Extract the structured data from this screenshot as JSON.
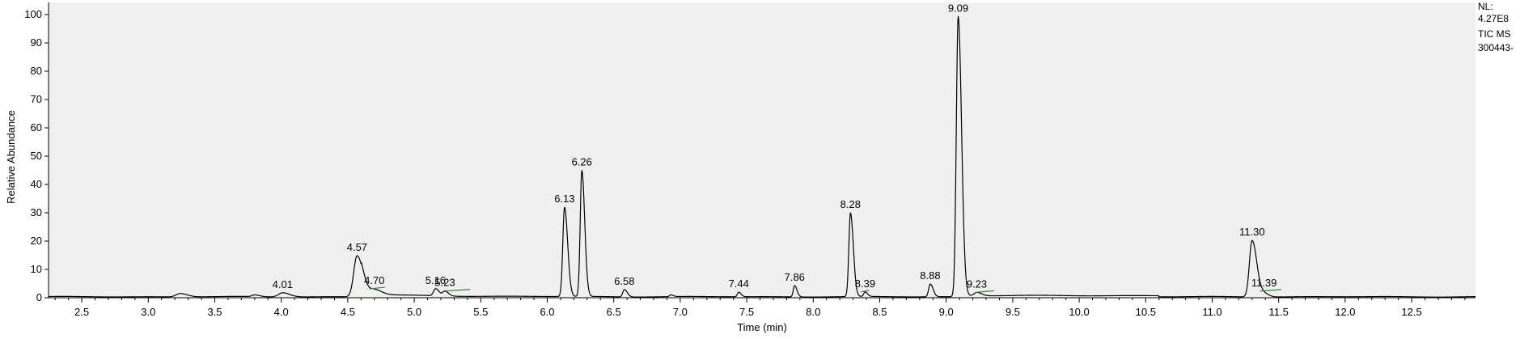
{
  "info": {
    "nl_label": "NL:",
    "nl_value": "4.27E8",
    "scan_filter": "TIC  MS",
    "file_name": "300443-"
  },
  "chart_data": {
    "type": "line",
    "title": "",
    "xlabel": "Time (min)",
    "ylabel": "Relative Abundance",
    "xlim": [
      2.25,
      12.98
    ],
    "ylim": [
      0,
      100
    ],
    "xticks": [
      2.5,
      3.0,
      3.5,
      4.0,
      4.5,
      5.0,
      5.5,
      6.0,
      6.5,
      7.0,
      7.5,
      8.0,
      8.5,
      9.0,
      9.5,
      10.0,
      10.5,
      11.0,
      11.5,
      12.0,
      12.5
    ],
    "xtick_labels": [
      "2.5",
      "3.0",
      "3.5",
      "4.0",
      "4.5",
      "5.0",
      "5.5",
      "6.0",
      "6.5",
      "7.0",
      "7.5",
      "8.0",
      "8.5",
      "9.0",
      "9.5",
      "10.0",
      "10.5",
      "11.0",
      "11.5",
      "12.0",
      "12.5"
    ],
    "yticks": [
      0,
      10,
      20,
      30,
      40,
      50,
      60,
      70,
      80,
      90,
      100
    ],
    "ytick_labels": [
      "0",
      "10",
      "20",
      "30",
      "40",
      "50",
      "60",
      "70",
      "80",
      "90",
      "100"
    ],
    "grid": false,
    "background": "#f0f0f0",
    "line_color": "#000000",
    "annotation_color": "#2e8b2e",
    "peaks": [
      {
        "rt": 3.24,
        "height": 1.2,
        "width": 0.03
      },
      {
        "rt": 3.8,
        "height": 0.6,
        "width": 0.02
      },
      {
        "rt": 4.01,
        "height": 1.5,
        "width": 0.03,
        "label": "4.01"
      },
      {
        "rt": 4.57,
        "height": 14.5,
        "width": 0.025,
        "label": "4.57"
      },
      {
        "rt": 4.7,
        "height": 1.8,
        "width": 0.03,
        "label": "4.70"
      },
      {
        "rt": 5.16,
        "height": 2.5,
        "width": 0.015,
        "label": "5.16"
      },
      {
        "rt": 5.23,
        "height": 1.7,
        "width": 0.015,
        "label": "5.23"
      },
      {
        "rt": 6.13,
        "height": 31.5,
        "width": 0.013,
        "label": "6.13"
      },
      {
        "rt": 6.26,
        "height": 44.5,
        "width": 0.012,
        "label": "6.26"
      },
      {
        "rt": 6.58,
        "height": 2.6,
        "width": 0.012,
        "label": "6.58"
      },
      {
        "rt": 6.93,
        "height": 0.6,
        "width": 0.01
      },
      {
        "rt": 7.44,
        "height": 1.6,
        "width": 0.01,
        "label": "7.44"
      },
      {
        "rt": 7.86,
        "height": 4.0,
        "width": 0.01,
        "label": "7.86"
      },
      {
        "rt": 8.28,
        "height": 29.5,
        "width": 0.012,
        "label": "8.28"
      },
      {
        "rt": 8.39,
        "height": 1.6,
        "width": 0.01,
        "label": "8.39"
      },
      {
        "rt": 8.88,
        "height": 4.5,
        "width": 0.012,
        "label": "8.88"
      },
      {
        "rt": 9.09,
        "height": 99.0,
        "width": 0.014,
        "label": "9.09"
      },
      {
        "rt": 9.23,
        "height": 1.2,
        "width": 0.02,
        "label": "9.23"
      },
      {
        "rt": 11.3,
        "height": 20.0,
        "width": 0.02,
        "label": "11.30"
      },
      {
        "rt": 11.39,
        "height": 1.2,
        "width": 0.02,
        "label": "11.39"
      }
    ],
    "label_marks": [
      {
        "rt": 4.7,
        "x_start": 4.66,
        "x_end": 4.78
      },
      {
        "rt": 5.23,
        "x_start": 5.24,
        "x_end": 5.42
      },
      {
        "rt": 8.39,
        "x_start": 8.36,
        "x_end": 8.42
      },
      {
        "rt": 9.23,
        "x_start": 9.22,
        "x_end": 9.36
      },
      {
        "rt": 11.39,
        "x_start": 11.36,
        "x_end": 11.52
      }
    ]
  }
}
